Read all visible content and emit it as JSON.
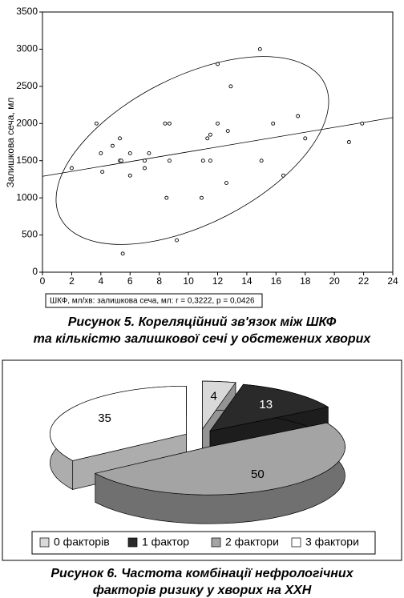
{
  "chart_data": [
    {
      "type": "scatter",
      "y_label": "Залишкова сеча, мл",
      "annotation": "ШКФ, мл/хв: залишкова сеча, мл: r = 0,3222, p = 0,0426",
      "caption": [
        "Рисунок 5. Кореляційний зв'язок між ШКФ",
        "та кількістю залишкової сечі у обстежених хворих"
      ],
      "xlim": [
        0,
        24
      ],
      "xticks": [
        0,
        2,
        4,
        6,
        8,
        10,
        12,
        14,
        16,
        18,
        20,
        22,
        24
      ],
      "ylim": [
        0,
        3500
      ],
      "yticks": [
        0,
        500,
        1000,
        1500,
        2000,
        2500,
        3000,
        3500
      ],
      "x": [
        2,
        3.7,
        4,
        4.1,
        4.8,
        5.3,
        5.3,
        5.4,
        5.5,
        6,
        6,
        7,
        7,
        7.3,
        8.4,
        8.7,
        8.5,
        8.7,
        9.2,
        10.9,
        11,
        11.3,
        11.5,
        11.5,
        12,
        12,
        12.6,
        12.7,
        12.9,
        14.9,
        15,
        15.8,
        16.5,
        17.5,
        18,
        21,
        21.9
      ],
      "values": [
        1400,
        2000,
        1600,
        1350,
        1700,
        1800,
        1500,
        1500,
        250,
        1600,
        1300,
        1400,
        1500,
        1600,
        2000,
        2000,
        1000,
        1500,
        430,
        1000,
        1500,
        1800,
        1850,
        1500,
        2000,
        2800,
        1200,
        1900,
        2500,
        3000,
        1500,
        2000,
        1300,
        2100,
        1800,
        1750,
        2000
      ],
      "color": "#000000",
      "trend": {
        "x": [
          0,
          24
        ],
        "y": [
          1290,
          2080
        ]
      }
    },
    {
      "type": "pie",
      "categories": [
        "0 факторів",
        "1 фактор",
        "2 фактори",
        "3 фактори"
      ],
      "values": [
        4,
        13,
        50,
        35
      ],
      "colors": [
        "#d9d9d9",
        "#2a2a2a",
        "#a4a4a4",
        "#ffffff"
      ],
      "legend": "bottom",
      "caption": [
        "Рисунок 6. Частота комбінації нефрологічних",
        "факторів ризику у хворих на ХХН"
      ]
    }
  ]
}
